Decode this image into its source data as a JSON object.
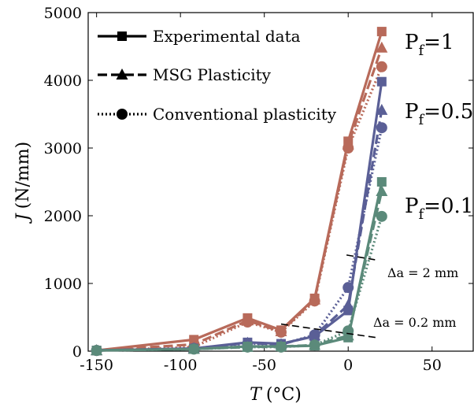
{
  "chart_data": {
    "type": "line",
    "xlabel_symbol": "T",
    "xlabel_unit": "(°C)",
    "ylabel_symbol": "J",
    "ylabel_unit": "(N/mm)",
    "xlim": [
      -155,
      75
    ],
    "ylim": [
      0,
      5000
    ],
    "xticks": [
      -150,
      -100,
      -50,
      0,
      50
    ],
    "yticks": [
      0,
      1000,
      2000,
      3000,
      4000,
      5000
    ],
    "grid": false,
    "legend_position": "top-left",
    "legend": [
      {
        "label": "Experimental data",
        "line": "solid",
        "marker": "square"
      },
      {
        "label": "MSG Plasticity",
        "line": "dashed",
        "marker": "triangle"
      },
      {
        "label": "Conventional plasticity",
        "line": "dotted",
        "marker": "circle"
      }
    ],
    "groups": [
      {
        "label_main": "P",
        "label_sub": "f",
        "label_rest": "=1",
        "color": "#b86a5a",
        "series": [
          {
            "style": "experimental",
            "x": [
              -150,
              -92,
              -60,
              -40,
              -20,
              0,
              20
            ],
            "y": [
              10,
              170,
              490,
              310,
              780,
              3100,
              4720
            ]
          },
          {
            "style": "msg",
            "x": [
              -150,
              -92,
              -60,
              -40,
              -20,
              0,
              20
            ],
            "y": [
              10,
              100,
              450,
              290,
              760,
              3050,
              4480
            ]
          },
          {
            "style": "conventional",
            "x": [
              -150,
              -92,
              -60,
              -40,
              -20,
              0,
              20
            ],
            "y": [
              10,
              60,
              430,
              280,
              740,
              3000,
              4200
            ]
          }
        ]
      },
      {
        "label_main": "P",
        "label_sub": "f",
        "label_rest": "=0.5",
        "color": "#5a5f96",
        "series": [
          {
            "style": "experimental",
            "x": [
              -150,
              -92,
              -60,
              -40,
              -20,
              0,
              20
            ],
            "y": [
              10,
              40,
              130,
              110,
              220,
              600,
              3980
            ]
          },
          {
            "style": "msg",
            "x": [
              -150,
              -92,
              -60,
              -40,
              -20,
              0,
              20
            ],
            "y": [
              10,
              40,
              120,
              100,
              230,
              680,
              3560
            ]
          },
          {
            "style": "conventional",
            "x": [
              -150,
              -92,
              -60,
              -40,
              -20,
              0,
              20
            ],
            "y": [
              10,
              40,
              110,
              100,
              240,
              940,
              3300
            ]
          }
        ]
      },
      {
        "label_main": "P",
        "label_sub": "f",
        "label_rest": "=0.1",
        "color": "#5b8a7a",
        "series": [
          {
            "style": "experimental",
            "x": [
              -150,
              -92,
              -60,
              -40,
              -20,
              0,
              20
            ],
            "y": [
              10,
              30,
              70,
              70,
              80,
              200,
              2500
            ]
          },
          {
            "style": "msg",
            "x": [
              -150,
              -92,
              -60,
              -40,
              -20,
              0,
              20
            ],
            "y": [
              10,
              30,
              60,
              70,
              90,
              230,
              2360
            ]
          },
          {
            "style": "conventional",
            "x": [
              -150,
              -92,
              -60,
              -40,
              -20,
              0,
              20
            ],
            "y": [
              10,
              30,
              60,
              60,
              90,
              300,
              1990
            ]
          }
        ]
      }
    ],
    "annotations": [
      {
        "text": "Δa = 2 mm",
        "line": [
          [
            -1,
            1420
          ],
          [
            16,
            1350
          ]
        ]
      },
      {
        "text": "Δa = 0.2 mm",
        "line": [
          [
            -40,
            400
          ],
          [
            17,
            200
          ]
        ]
      }
    ]
  }
}
